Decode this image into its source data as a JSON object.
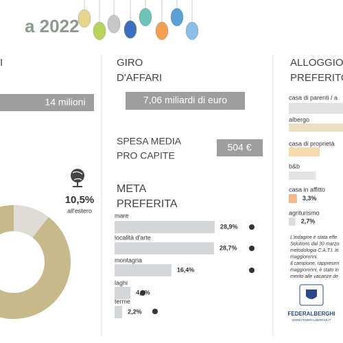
{
  "header": {
    "title": "a 2022"
  },
  "arrivals": {
    "heading": "I",
    "total": "14 milioni",
    "abroad": {
      "value": 10.5,
      "value_label": "10,5%",
      "caption": "all'estero"
    }
  },
  "turnover": {
    "heading": [
      "GIRO",
      "D'AFFARI"
    ],
    "total": "7,06 miliardi di euro"
  },
  "spending": {
    "heading": [
      "SPESA MEDIA",
      "PRO CAPITE"
    ],
    "total": "504 €"
  },
  "destination": {
    "type": "bar",
    "heading": [
      "META",
      "PREFERITA"
    ],
    "categories": [
      "mare",
      "località d'arte",
      "montagna",
      "laghi",
      "terme"
    ],
    "values": [
      28.9,
      28.7,
      16.4,
      4.6,
      2.2
    ],
    "value_labels": [
      "28,9%",
      "28,7%",
      "16,4%",
      "4,6%",
      "2,2%"
    ],
    "color": "#d3d7da"
  },
  "accommodation": {
    "type": "bar",
    "heading": [
      "ALLOGGIO",
      "PREFERITO"
    ],
    "categories": [
      "casa di parenti / a",
      "albergo",
      "casa di proprietà",
      "b&b",
      "casa in affitto",
      "agriturismo"
    ],
    "values": [
      35,
      30,
      12.5,
      11,
      3.3,
      2.7
    ],
    "value_labels": [
      null,
      null,
      null,
      null,
      "3,3%",
      "2,7%"
    ],
    "colors": [
      "#e2e2e2",
      "#ecdfc2",
      "#f7d9ae",
      "#e4e4e4",
      "#f5b88a",
      "#dcdcdc"
    ]
  },
  "note": [
    "L'indagine è stata effe",
    "Solutions dal 30 marzo",
    "metodologia C.A.T.I. in",
    "maggiorenni.",
    "Il campione, rappresen",
    "maggiorenni, è stato in",
    "merito alle vacanze de"
  ],
  "logo": {
    "name": "FEDERALBERGHI",
    "url": "WWW.FEDERALBERGHI.IT"
  }
}
